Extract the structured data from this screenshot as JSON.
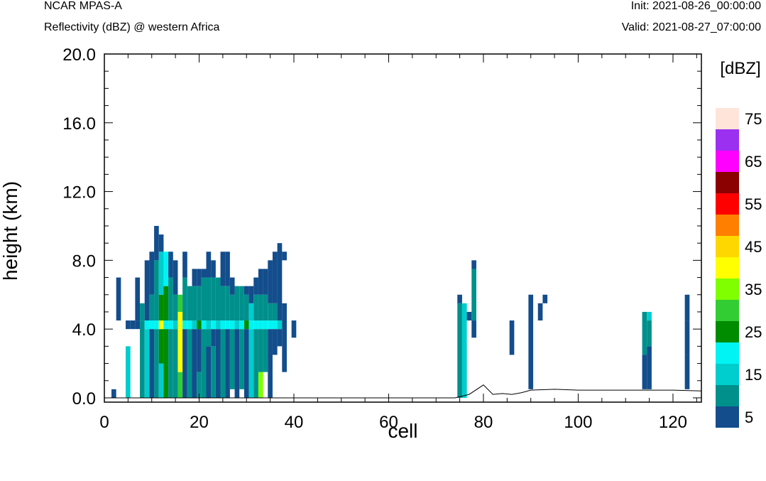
{
  "header": {
    "model": "NCAR MPAS-A",
    "field": "Reflectivity (dBZ) @ western Africa",
    "init": "Init: 2021-08-26_00:00:00",
    "valid": "Valid: 2021-08-27_07:00:00"
  },
  "chart_data": {
    "type": "heatmap",
    "xlabel": "cell",
    "ylabel": "height (km)",
    "xlim": [
      0,
      126
    ],
    "ylim": [
      -0.25,
      20.0
    ],
    "xticks": [
      0,
      20,
      40,
      60,
      80,
      100,
      120
    ],
    "xtick_labels": [
      "0",
      "20",
      "40",
      "60",
      "80",
      "100",
      "120"
    ],
    "yticks": [
      0,
      4,
      8,
      12,
      16,
      20
    ],
    "ytick_labels": [
      "0.0",
      "4.0",
      "8.0",
      "12.0",
      "16.0",
      "20.0"
    ],
    "grid": false,
    "colorbar": {
      "title": "[dBZ]",
      "bins": [
        5,
        10,
        15,
        20,
        25,
        30,
        35,
        40,
        45,
        50,
        55,
        60,
        65,
        70,
        75
      ],
      "labels": [
        "5",
        "15",
        "25",
        "35",
        "45",
        "55",
        "65",
        "75"
      ],
      "colors": [
        "#134d8b",
        "#00908c",
        "#00cdcd",
        "#00f4f4",
        "#008c00",
        "#32cd32",
        "#7fff00",
        "#ffff00",
        "#ffd700",
        "#ff7f00",
        "#ff0000",
        "#8b0000",
        "#ff00ff",
        "#9b30f0",
        "#ffe4da"
      ]
    },
    "cell_width": 1,
    "cell_height_km": 0.5,
    "columns": [
      {
        "x": 2,
        "segments": [
          {
            "z0": 0.0,
            "z1": 0.5,
            "dbz": 5
          }
        ]
      },
      {
        "x": 3,
        "segments": [
          {
            "z0": 4.5,
            "z1": 7.0,
            "dbz": 5
          }
        ]
      },
      {
        "x": 5,
        "segments": [
          {
            "z0": 0.0,
            "z1": 3.0,
            "dbz": 15
          },
          {
            "z0": 4.0,
            "z1": 4.5,
            "dbz": 5
          }
        ]
      },
      {
        "x": 6,
        "segments": [
          {
            "z0": 4.0,
            "z1": 4.5,
            "dbz": 5
          }
        ]
      },
      {
        "x": 7,
        "segments": [
          {
            "z0": 4.0,
            "z1": 4.5,
            "dbz": 5
          },
          {
            "z0": 4.5,
            "z1": 7.0,
            "dbz": 5
          }
        ]
      },
      {
        "x": 8,
        "segments": [
          {
            "z0": 0.0,
            "z1": 4.5,
            "dbz": 10
          },
          {
            "z0": 4.5,
            "z1": 5.5,
            "dbz": 10
          }
        ]
      },
      {
        "x": 9,
        "segments": [
          {
            "z0": 0.0,
            "z1": 4.0,
            "dbz": 15
          },
          {
            "z0": 4.0,
            "z1": 4.5,
            "dbz": 20
          },
          {
            "z0": 4.5,
            "z1": 8.0,
            "dbz": 5
          }
        ]
      },
      {
        "x": 10,
        "segments": [
          {
            "z0": 0.0,
            "z1": 4.0,
            "dbz": 5
          },
          {
            "z0": 4.0,
            "z1": 4.5,
            "dbz": 20
          },
          {
            "z0": 4.5,
            "z1": 6.0,
            "dbz": 10
          },
          {
            "z0": 6.0,
            "z1": 8.5,
            "dbz": 5
          }
        ]
      },
      {
        "x": 11,
        "segments": [
          {
            "z0": 0.0,
            "z1": 4.0,
            "dbz": 10
          },
          {
            "z0": 4.0,
            "z1": 4.5,
            "dbz": 20
          },
          {
            "z0": 4.5,
            "z1": 8.0,
            "dbz": 10
          },
          {
            "z0": 8.0,
            "z1": 10.0,
            "dbz": 5
          }
        ]
      },
      {
        "x": 12,
        "segments": [
          {
            "z0": 0.0,
            "z1": 2.0,
            "dbz": 15
          },
          {
            "z0": 2.0,
            "z1": 4.0,
            "dbz": 25
          },
          {
            "z0": 4.0,
            "z1": 4.5,
            "dbz": 40
          },
          {
            "z0": 4.5,
            "z1": 6.0,
            "dbz": 25
          },
          {
            "z0": 6.0,
            "z1": 8.5,
            "dbz": 15
          },
          {
            "z0": 8.5,
            "z1": 9.5,
            "dbz": 5
          }
        ]
      },
      {
        "x": 13,
        "segments": [
          {
            "z0": 0.0,
            "z1": 4.0,
            "dbz": 25
          },
          {
            "z0": 4.0,
            "z1": 4.5,
            "dbz": 20
          },
          {
            "z0": 4.5,
            "z1": 6.5,
            "dbz": 25
          },
          {
            "z0": 6.5,
            "z1": 8.5,
            "dbz": 20
          }
        ]
      },
      {
        "x": 14,
        "segments": [
          {
            "z0": 0.0,
            "z1": 4.0,
            "dbz": 10
          },
          {
            "z0": 4.0,
            "z1": 4.5,
            "dbz": 20
          },
          {
            "z0": 4.5,
            "z1": 7.0,
            "dbz": 10
          },
          {
            "z0": 7.0,
            "z1": 8.5,
            "dbz": 5
          }
        ]
      },
      {
        "x": 15,
        "segments": [
          {
            "z0": 0.0,
            "z1": 4.0,
            "dbz": 10
          },
          {
            "z0": 4.0,
            "z1": 4.5,
            "dbz": 15
          },
          {
            "z0": 4.5,
            "z1": 6.0,
            "dbz": 10
          },
          {
            "z0": 6.0,
            "z1": 8.0,
            "dbz": 5
          }
        ]
      },
      {
        "x": 16,
        "segments": [
          {
            "z0": 0.0,
            "z1": 1.5,
            "dbz": 30
          },
          {
            "z0": 1.5,
            "z1": 5.0,
            "dbz": 40
          },
          {
            "z0": 5.0,
            "z1": 6.0,
            "dbz": 30
          }
        ]
      },
      {
        "x": 17,
        "segments": [
          {
            "z0": 0.0,
            "z1": 4.0,
            "dbz": 5
          },
          {
            "z0": 4.0,
            "z1": 4.5,
            "dbz": 20
          },
          {
            "z0": 4.5,
            "z1": 7.0,
            "dbz": 10
          },
          {
            "z0": 7.0,
            "z1": 8.5,
            "dbz": 5
          }
        ]
      },
      {
        "x": 18,
        "segments": [
          {
            "z0": 0.0,
            "z1": 4.0,
            "dbz": 10
          },
          {
            "z0": 4.0,
            "z1": 4.5,
            "dbz": 20
          },
          {
            "z0": 4.5,
            "z1": 6.5,
            "dbz": 10
          }
        ]
      },
      {
        "x": 19,
        "segments": [
          {
            "z0": 0.0,
            "z1": 4.0,
            "dbz": 5
          },
          {
            "z0": 4.0,
            "z1": 4.5,
            "dbz": 15
          },
          {
            "z0": 4.5,
            "z1": 6.5,
            "dbz": 10
          },
          {
            "z0": 6.5,
            "z1": 7.5,
            "dbz": 5
          }
        ]
      },
      {
        "x": 20,
        "segments": [
          {
            "z0": 0.0,
            "z1": 1.5,
            "dbz": 10
          },
          {
            "z0": 1.5,
            "z1": 4.0,
            "dbz": 5
          },
          {
            "z0": 4.0,
            "z1": 4.5,
            "dbz": 25
          },
          {
            "z0": 4.5,
            "z1": 6.5,
            "dbz": 10
          },
          {
            "z0": 6.5,
            "z1": 7.5,
            "dbz": 5
          }
        ]
      },
      {
        "x": 21,
        "segments": [
          {
            "z0": 0.0,
            "z1": 4.0,
            "dbz": 10
          },
          {
            "z0": 4.0,
            "z1": 4.5,
            "dbz": 20
          },
          {
            "z0": 4.5,
            "z1": 7.0,
            "dbz": 10
          },
          {
            "z0": 7.0,
            "z1": 7.5,
            "dbz": 5
          }
        ]
      },
      {
        "x": 22,
        "segments": [
          {
            "z0": 0.0,
            "z1": 3.0,
            "dbz": 5
          },
          {
            "z0": 3.0,
            "z1": 4.0,
            "dbz": 10
          },
          {
            "z0": 4.0,
            "z1": 4.5,
            "dbz": 15
          },
          {
            "z0": 4.5,
            "z1": 7.0,
            "dbz": 10
          },
          {
            "z0": 7.0,
            "z1": 8.5,
            "dbz": 5
          }
        ]
      },
      {
        "x": 23,
        "segments": [
          {
            "z0": 0.0,
            "z1": 3.0,
            "dbz": 10
          },
          {
            "z0": 3.0,
            "z1": 4.0,
            "dbz": 5
          },
          {
            "z0": 4.0,
            "z1": 4.5,
            "dbz": 20
          },
          {
            "z0": 4.5,
            "z1": 7.0,
            "dbz": 10
          },
          {
            "z0": 7.0,
            "z1": 8.0,
            "dbz": 5
          }
        ]
      },
      {
        "x": 24,
        "segments": [
          {
            "z0": 0.0,
            "z1": 4.0,
            "dbz": 5
          },
          {
            "z0": 4.0,
            "z1": 4.5,
            "dbz": 15
          },
          {
            "z0": 4.5,
            "z1": 7.0,
            "dbz": 10
          }
        ]
      },
      {
        "x": 25,
        "segments": [
          {
            "z0": 0.0,
            "z1": 4.0,
            "dbz": 10
          },
          {
            "z0": 4.0,
            "z1": 4.5,
            "dbz": 20
          },
          {
            "z0": 4.5,
            "z1": 6.5,
            "dbz": 10
          },
          {
            "z0": 6.5,
            "z1": 8.5,
            "dbz": 5
          }
        ]
      },
      {
        "x": 26,
        "segments": [
          {
            "z0": 0.0,
            "z1": 4.0,
            "dbz": 5
          },
          {
            "z0": 4.0,
            "z1": 4.5,
            "dbz": 20
          },
          {
            "z0": 4.5,
            "z1": 6.5,
            "dbz": 10
          },
          {
            "z0": 6.5,
            "z1": 8.5,
            "dbz": 5
          }
        ]
      },
      {
        "x": 27,
        "segments": [
          {
            "z0": 0.5,
            "z1": 4.0,
            "dbz": 10
          },
          {
            "z0": 4.0,
            "z1": 4.5,
            "dbz": 20
          },
          {
            "z0": 4.5,
            "z1": 6.0,
            "dbz": 10
          },
          {
            "z0": 6.0,
            "z1": 7.0,
            "dbz": 5
          }
        ]
      },
      {
        "x": 28,
        "segments": [
          {
            "z0": 0.0,
            "z1": 4.0,
            "dbz": 5
          },
          {
            "z0": 4.0,
            "z1": 4.5,
            "dbz": 15
          },
          {
            "z0": 4.5,
            "z1": 6.5,
            "dbz": 10
          }
        ]
      },
      {
        "x": 29,
        "segments": [
          {
            "z0": 0.5,
            "z1": 4.0,
            "dbz": 10
          },
          {
            "z0": 4.0,
            "z1": 4.5,
            "dbz": 20
          },
          {
            "z0": 4.5,
            "z1": 6.5,
            "dbz": 10
          }
        ]
      },
      {
        "x": 30,
        "segments": [
          {
            "z0": 0.0,
            "z1": 4.0,
            "dbz": 5
          },
          {
            "z0": 4.0,
            "z1": 4.5,
            "dbz": 25
          },
          {
            "z0": 4.5,
            "z1": 6.0,
            "dbz": 10
          },
          {
            "z0": 6.0,
            "z1": 6.5,
            "dbz": 5
          }
        ]
      },
      {
        "x": 31,
        "segments": [
          {
            "z0": 0.0,
            "z1": 4.0,
            "dbz": 15
          },
          {
            "z0": 4.0,
            "z1": 4.5,
            "dbz": 20
          },
          {
            "z0": 4.5,
            "z1": 5.5,
            "dbz": 15
          },
          {
            "z0": 5.5,
            "z1": 6.5,
            "dbz": 5
          }
        ]
      },
      {
        "x": 32,
        "segments": [
          {
            "z0": 0.0,
            "z1": 4.0,
            "dbz": 10
          },
          {
            "z0": 4.0,
            "z1": 4.5,
            "dbz": 20
          },
          {
            "z0": 4.5,
            "z1": 6.0,
            "dbz": 10
          },
          {
            "z0": 6.0,
            "z1": 7.0,
            "dbz": 5
          }
        ]
      },
      {
        "x": 33,
        "segments": [
          {
            "z0": 0.0,
            "z1": 1.5,
            "dbz": 35
          },
          {
            "z0": 1.5,
            "z1": 4.0,
            "dbz": 10
          },
          {
            "z0": 4.0,
            "z1": 4.5,
            "dbz": 20
          },
          {
            "z0": 4.5,
            "z1": 6.0,
            "dbz": 10
          },
          {
            "z0": 6.0,
            "z1": 7.5,
            "dbz": 5
          }
        ]
      },
      {
        "x": 34,
        "segments": [
          {
            "z0": 1.5,
            "z1": 4.0,
            "dbz": 10
          },
          {
            "z0": 4.0,
            "z1": 4.5,
            "dbz": 20
          },
          {
            "z0": 4.5,
            "z1": 6.0,
            "dbz": 10
          },
          {
            "z0": 6.0,
            "z1": 7.5,
            "dbz": 5
          }
        ]
      },
      {
        "x": 35,
        "segments": [
          {
            "z0": 0.0,
            "z1": 4.0,
            "dbz": 5
          },
          {
            "z0": 4.0,
            "z1": 4.5,
            "dbz": 20
          },
          {
            "z0": 4.5,
            "z1": 5.5,
            "dbz": 10
          },
          {
            "z0": 5.5,
            "z1": 8.0,
            "dbz": 5
          }
        ]
      },
      {
        "x": 36,
        "segments": [
          {
            "z0": 2.5,
            "z1": 4.0,
            "dbz": 5
          },
          {
            "z0": 4.0,
            "z1": 4.5,
            "dbz": 20
          },
          {
            "z0": 4.5,
            "z1": 5.5,
            "dbz": 10
          },
          {
            "z0": 5.5,
            "z1": 8.5,
            "dbz": 5
          }
        ]
      },
      {
        "x": 37,
        "segments": [
          {
            "z0": 3.0,
            "z1": 4.0,
            "dbz": 5
          },
          {
            "z0": 4.0,
            "z1": 4.5,
            "dbz": 15
          },
          {
            "z0": 4.5,
            "z1": 9.0,
            "dbz": 5
          }
        ]
      },
      {
        "x": 38,
        "segments": [
          {
            "z0": 1.5,
            "z1": 5.5,
            "dbz": 5
          },
          {
            "z0": 8.0,
            "z1": 8.5,
            "dbz": 5
          }
        ]
      },
      {
        "x": 40,
        "segments": [
          {
            "z0": 3.5,
            "z1": 4.5,
            "dbz": 5
          }
        ]
      },
      {
        "x": 75,
        "segments": [
          {
            "z0": 0.0,
            "z1": 5.5,
            "dbz": 10
          },
          {
            "z0": 5.5,
            "z1": 6.0,
            "dbz": 5
          }
        ]
      },
      {
        "x": 76,
        "segments": [
          {
            "z0": 0.0,
            "z1": 5.5,
            "dbz": 15
          }
        ]
      },
      {
        "x": 77,
        "segments": [
          {
            "z0": 4.5,
            "z1": 5.0,
            "dbz": 5
          }
        ]
      },
      {
        "x": 78,
        "segments": [
          {
            "z0": 3.5,
            "z1": 4.5,
            "dbz": 5
          },
          {
            "z0": 4.5,
            "z1": 7.5,
            "dbz": 10
          },
          {
            "z0": 7.5,
            "z1": 8.0,
            "dbz": 5
          }
        ]
      },
      {
        "x": 86,
        "segments": [
          {
            "z0": 2.5,
            "z1": 4.5,
            "dbz": 5
          }
        ]
      },
      {
        "x": 90,
        "segments": [
          {
            "z0": 0.5,
            "z1": 6.0,
            "dbz": 5
          }
        ]
      },
      {
        "x": 92,
        "segments": [
          {
            "z0": 4.5,
            "z1": 5.5,
            "dbz": 5
          }
        ]
      },
      {
        "x": 93,
        "segments": [
          {
            "z0": 5.5,
            "z1": 6.0,
            "dbz": 5
          }
        ]
      },
      {
        "x": 114,
        "segments": [
          {
            "z0": 0.5,
            "z1": 2.5,
            "dbz": 5
          },
          {
            "z0": 2.5,
            "z1": 5.0,
            "dbz": 10
          }
        ]
      },
      {
        "x": 115,
        "segments": [
          {
            "z0": 0.5,
            "z1": 3.0,
            "dbz": 5
          },
          {
            "z0": 3.0,
            "z1": 4.5,
            "dbz": 10
          },
          {
            "z0": 4.5,
            "z1": 5.0,
            "dbz": 15
          }
        ]
      },
      {
        "x": 123,
        "segments": [
          {
            "z0": 0.5,
            "z1": 2.5,
            "dbz": 5
          },
          {
            "z0": 2.5,
            "z1": 4.5,
            "dbz": 5
          },
          {
            "z0": 4.5,
            "z1": 6.0,
            "dbz": 5
          }
        ]
      }
    ],
    "terrain": {
      "x": [
        0,
        74,
        77,
        80,
        82,
        84,
        86,
        88,
        90,
        95,
        100,
        110,
        120,
        126
      ],
      "height": [
        0.0,
        0.0,
        0.2,
        0.75,
        0.2,
        0.25,
        0.2,
        0.3,
        0.45,
        0.5,
        0.45,
        0.45,
        0.45,
        0.4
      ]
    }
  }
}
